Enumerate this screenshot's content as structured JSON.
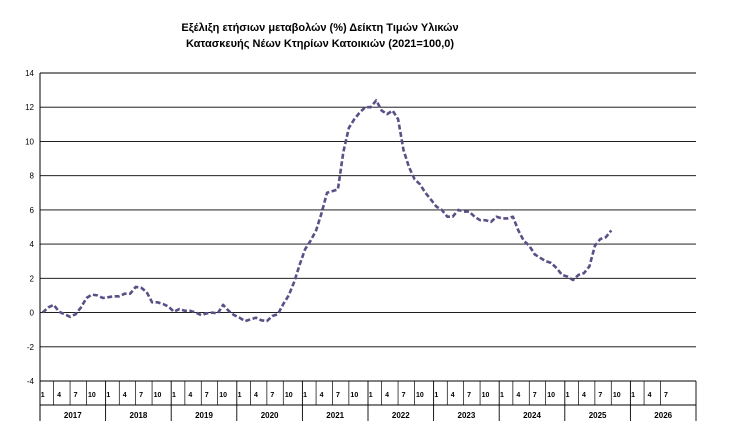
{
  "chart_data": {
    "type": "line",
    "title": "Εξέλιξη ετήσιων μεταβολών (%) Δείκτη Τιμών Υλικών",
    "subtitle": "Κατασκευής Νέων Κτηρίων Κατοικιών (2021=100,0)",
    "xlabel": "",
    "ylabel": "",
    "ylim": [
      -4,
      14
    ],
    "yticks": [
      -4,
      -2,
      0,
      2,
      4,
      6,
      8,
      10,
      12,
      14
    ],
    "grid": true,
    "legend": "none",
    "line_color": "#5b4f86",
    "line_style": "dashed",
    "start": "2017-01",
    "month_ticks": [
      "1",
      "4",
      "7",
      "10"
    ],
    "years": [
      "2017",
      "2018",
      "2019",
      "2020",
      "2021",
      "2022",
      "2023",
      "2024",
      "2025",
      "2026"
    ],
    "series": [
      {
        "values": [
          0.0,
          0.3,
          0.45,
          0.05,
          -0.1,
          -0.25,
          -0.1,
          0.3,
          0.85,
          1.05,
          1.0,
          0.85,
          0.9,
          0.95,
          0.95,
          1.1,
          1.1,
          1.5,
          1.45,
          1.2,
          0.6,
          0.6,
          0.5,
          0.35,
          0.05,
          0.2,
          0.1,
          0.1,
          0.0,
          -0.15,
          -0.05,
          0.0,
          -0.05,
          0.45,
          0.1,
          -0.15,
          -0.3,
          -0.5,
          -0.4,
          -0.3,
          -0.45,
          -0.5,
          -0.2,
          -0.1,
          0.5,
          1.0,
          1.8,
          2.8,
          3.7,
          4.2,
          4.8,
          5.8,
          7.0,
          7.1,
          7.2,
          9.4,
          10.8,
          11.3,
          11.7,
          12.0,
          12.0,
          12.4,
          11.8,
          11.6,
          11.8,
          11.3,
          9.5,
          8.5,
          7.8,
          7.5,
          7.0,
          6.6,
          6.2,
          6.0,
          5.6,
          5.6,
          6.0,
          5.9,
          5.9,
          5.6,
          5.4,
          5.4,
          5.3,
          5.6,
          5.5,
          5.5,
          5.6,
          4.8,
          4.2,
          3.9,
          3.4,
          3.2,
          3.0,
          2.9,
          2.6,
          2.2,
          2.1,
          1.9,
          2.2,
          2.3,
          2.7,
          3.9,
          4.3,
          4.4,
          4.8
        ]
      }
    ]
  }
}
